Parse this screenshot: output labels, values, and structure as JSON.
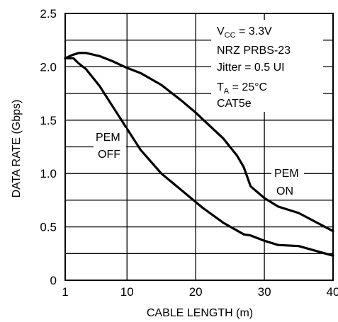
{
  "chart_data": {
    "type": "line",
    "xlabel": "CABLE LENGTH (m)",
    "ylabel": "DATA RATE (Gbps)",
    "x_ticks": [
      {
        "value": 1,
        "label": "1"
      },
      {
        "value": 10,
        "label": "10"
      },
      {
        "value": 20,
        "label": "20"
      },
      {
        "value": 30,
        "label": "30"
      },
      {
        "value": 40,
        "label": "40"
      }
    ],
    "y_ticks": [
      {
        "value": 0,
        "label": "0"
      },
      {
        "value": 0.5,
        "label": "0.5"
      },
      {
        "value": 1.0,
        "label": "1.0"
      },
      {
        "value": 1.5,
        "label": "1.5"
      },
      {
        "value": 2.0,
        "label": "2.0"
      },
      {
        "value": 2.5,
        "label": "2.5"
      }
    ],
    "xlim": [
      1,
      40
    ],
    "ylim": [
      0,
      2.5
    ],
    "grid": true,
    "grid_y_values": [
      0.25,
      0.5,
      0.75,
      1.0,
      1.25,
      1.5,
      1.75,
      2.0,
      2.25
    ],
    "grid_x_values": [
      10,
      20,
      30
    ],
    "conditions": {
      "vcc": {
        "prefix": "V",
        "sub": "CC",
        "text": " = 3.3V"
      },
      "pattern": "NRZ PRBS-23",
      "jitter": "Jitter = 0.5 UI",
      "ta": {
        "prefix": "T",
        "sub": "A",
        "text": " = 25°C"
      },
      "cable": "CAT5e"
    },
    "series": [
      {
        "name": "PEM OFF",
        "label_lines": [
          "PEM",
          "OFF"
        ],
        "x": [
          1,
          2.2,
          3,
          4,
          6,
          8,
          10,
          12,
          15,
          18,
          21,
          24,
          27,
          28,
          30,
          32,
          35,
          40
        ],
        "y": [
          2.08,
          2.08,
          2.03,
          1.98,
          1.82,
          1.62,
          1.42,
          1.22,
          1.0,
          0.84,
          0.68,
          0.54,
          0.43,
          0.42,
          0.37,
          0.33,
          0.32,
          0.23
        ]
      },
      {
        "name": "PEM ON",
        "label_lines": [
          "PEM",
          "ON"
        ],
        "x": [
          1,
          2,
          3,
          4,
          6,
          8,
          10,
          12,
          15,
          18,
          20,
          22,
          24,
          26,
          27,
          28,
          30,
          32,
          35,
          40
        ],
        "y": [
          2.08,
          2.11,
          2.13,
          2.13,
          2.1,
          2.05,
          1.99,
          1.94,
          1.83,
          1.68,
          1.57,
          1.45,
          1.33,
          1.17,
          1.06,
          0.88,
          0.77,
          0.69,
          0.63,
          0.46
        ]
      }
    ]
  }
}
